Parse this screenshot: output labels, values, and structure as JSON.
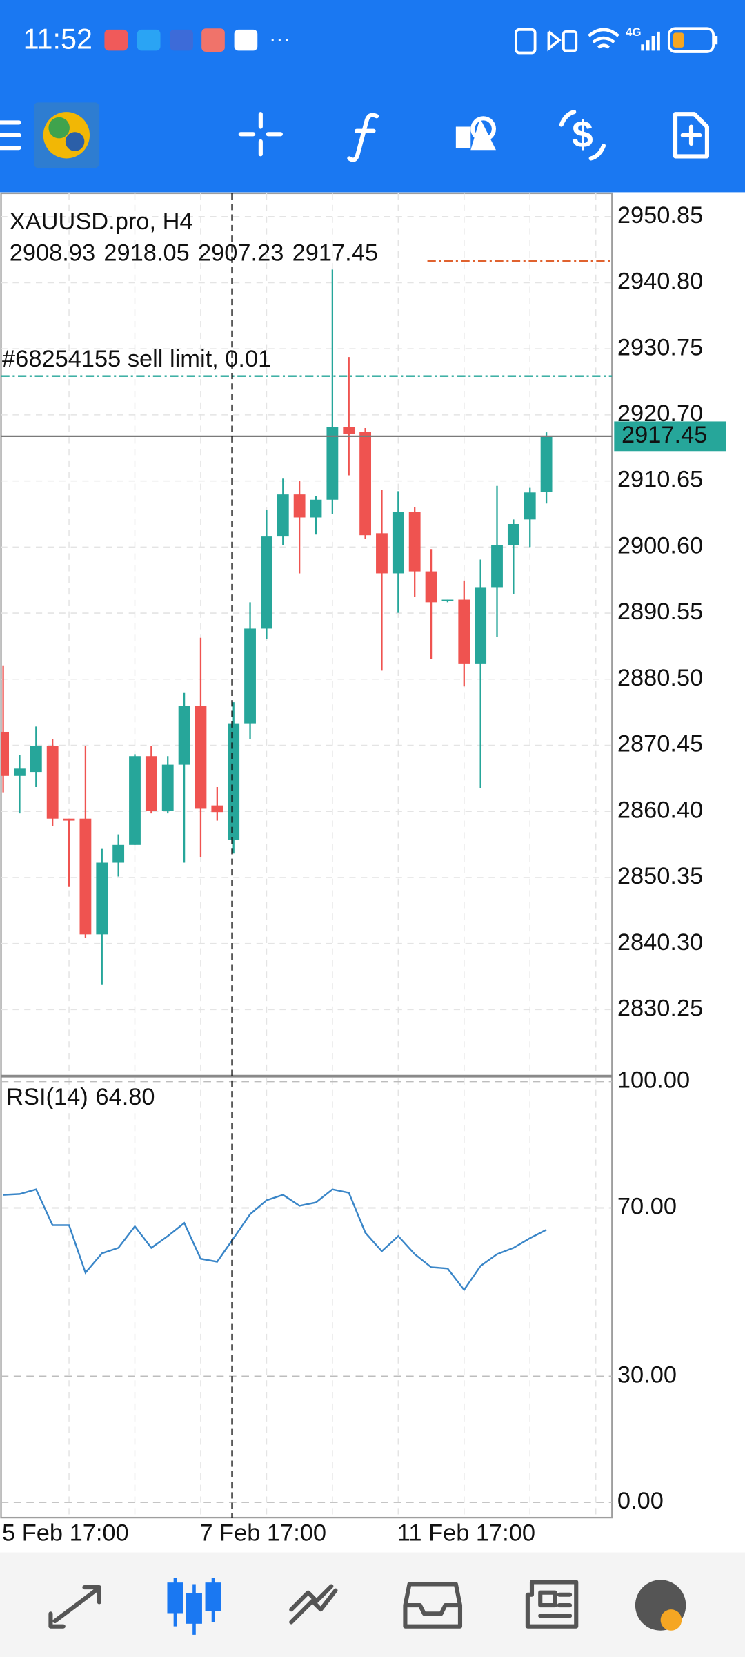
{
  "status_bar": {
    "time": "11:52",
    "network": "4G"
  },
  "chart_data": [
    {
      "type": "candlestick",
      "title": "XAUUSD.pro, H4",
      "categories": [
        "5 Feb 17:00",
        null,
        null,
        null,
        null,
        null,
        null,
        null,
        null,
        null,
        null,
        null,
        "7 Feb 17:00",
        null,
        null,
        null,
        null,
        null,
        null,
        null,
        null,
        null,
        null,
        null,
        "11 Feb 17:00",
        null,
        null,
        null,
        null,
        null,
        null,
        null,
        null,
        null
      ],
      "open": [
        2872.5,
        2865.8,
        2866.4,
        2870.4,
        2859.3,
        2859.3,
        2841.7,
        2852.6,
        2855.3,
        2868.8,
        2860.5,
        2867.5,
        2876.4,
        2861.3,
        2856.1,
        2873.8,
        2888.2,
        2902.2,
        2908.6,
        2905.1,
        2907.8,
        2918.9,
        2918.1,
        2902.7,
        2896.6,
        2905.9,
        2896.9,
        2892.6,
        2892.6,
        2882.8,
        2894.5,
        2900.9,
        2904.8,
        2908.93
      ],
      "high": [
        2882.6,
        2869.0,
        2873.3,
        2871.4,
        2859.3,
        2870.4,
        2854.8,
        2856.9,
        2869.1,
        2870.4,
        2868.8,
        2878.4,
        2886.8,
        2864.1,
        2877.0,
        2892.2,
        2906.2,
        2911.0,
        2910.7,
        2908.3,
        2942.8,
        2929.5,
        2918.7,
        2909.3,
        2909.1,
        2906.7,
        2900.3,
        2892.6,
        2895.5,
        2898.7,
        2909.9,
        2904.8,
        2909.6,
        2918.05
      ],
      "low": [
        2863.3,
        2860.1,
        2864.1,
        2858.2,
        2848.9,
        2841.2,
        2834.1,
        2850.5,
        2855.3,
        2860.1,
        2860.1,
        2852.6,
        2853.4,
        2859.0,
        2854.0,
        2871.4,
        2886.6,
        2900.9,
        2896.6,
        2902.5,
        2905.6,
        2911.5,
        2901.9,
        2881.8,
        2890.6,
        2893.0,
        2883.6,
        2892.2,
        2879.4,
        2864.0,
        2886.9,
        2893.5,
        2900.6,
        2907.23
      ],
      "close": [
        2865.8,
        2866.9,
        2870.4,
        2859.3,
        2859.0,
        2841.7,
        2852.6,
        2855.3,
        2868.8,
        2860.5,
        2867.5,
        2876.4,
        2860.8,
        2860.3,
        2873.8,
        2888.2,
        2902.2,
        2908.6,
        2905.1,
        2907.8,
        2918.9,
        2917.8,
        2902.4,
        2896.6,
        2905.9,
        2896.9,
        2892.2,
        2892.6,
        2882.8,
        2894.5,
        2900.9,
        2904.1,
        2908.9,
        2917.45
      ],
      "up_color": "#26a69a",
      "down_color": "#ef5350",
      "ylim": [
        2820.3,
        2954.4
      ],
      "yticks": [
        2950.85,
        {
          "value": 2940.8,
          "label": "2940.80"
        },
        2930.75,
        {
          "value": 2920.7,
          "label": "2920.70"
        },
        2910.65,
        {
          "value": 2900.6,
          "label": "2900.60"
        },
        2890.55,
        {
          "value": 2880.5,
          "label": "2880.50"
        },
        2870.45,
        {
          "value": 2860.4,
          "label": "2860.40"
        },
        2850.35,
        {
          "value": 2840.3,
          "label": "2840.30"
        },
        2830.25
      ],
      "grid": true,
      "levels": [
        {
          "label": "#68254155 sell limit, 0.01",
          "value": 2926.6,
          "color": "#26a69a"
        },
        {
          "value": 2944.1,
          "color": "#e0622f"
        }
      ]
    },
    {
      "type": "line",
      "series": [
        {
          "name": "RSI(14)",
          "color": "#3a86c8",
          "values": [
            73.1,
            73.3,
            74.4,
            65.9,
            65.9,
            54.6,
            59.2,
            60.5,
            65.6,
            60.5,
            63.3,
            66.4,
            57.9,
            57.2,
            62.8,
            68.5,
            71.8,
            73.1,
            70.5,
            71.3,
            74.4,
            73.6,
            64.1,
            59.7,
            63.3,
            59.0,
            55.9,
            55.6,
            50.5,
            56.2,
            59.0,
            60.5,
            62.8,
            64.8
          ],
          "value_labels": [
            null,
            null,
            null,
            null,
            null,
            null,
            null,
            null,
            null,
            null,
            null,
            null,
            null,
            null,
            null,
            null,
            null,
            null,
            null,
            null,
            null,
            null,
            null,
            null,
            null,
            null,
            null,
            null,
            null,
            null,
            null,
            null,
            null,
            "64.80"
          ]
        }
      ],
      "ylim": [
        -3.6,
        100.8
      ],
      "yticks": [
        {
          "value": 100,
          "label": "100.00"
        },
        {
          "value": 70,
          "label": "70.00"
        },
        {
          "value": 30,
          "label": "30.00"
        },
        {
          "value": 0,
          "label": "0.00"
        }
      ],
      "grid": true
    }
  ]
}
